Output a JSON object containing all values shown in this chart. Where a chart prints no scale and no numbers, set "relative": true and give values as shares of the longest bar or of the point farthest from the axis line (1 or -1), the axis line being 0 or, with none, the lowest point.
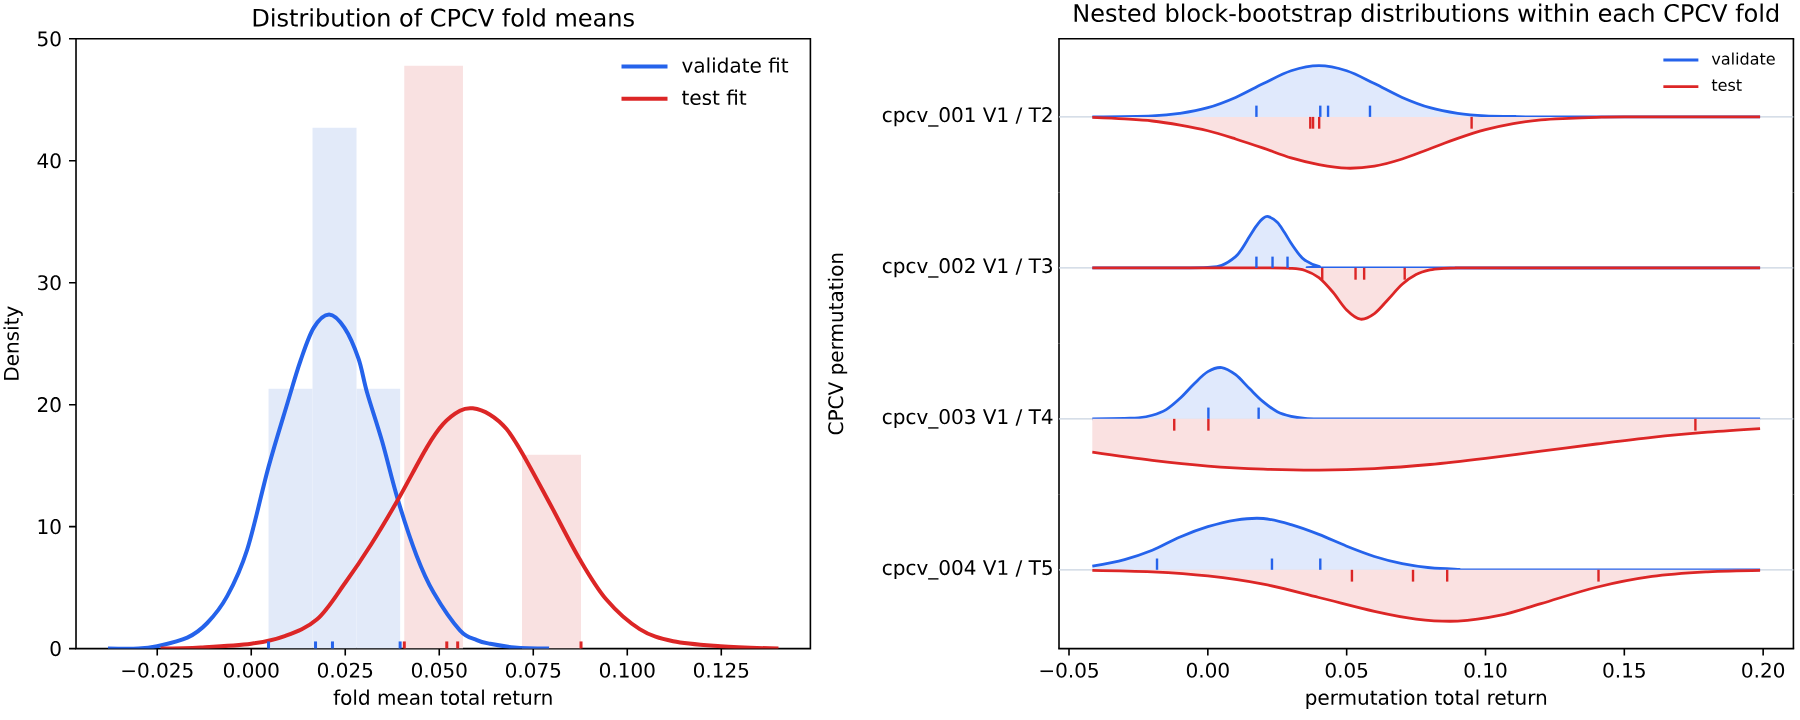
{
  "chart_data": [
    {
      "type": "histogram",
      "title": "Distribution of CPCV fold means",
      "xlabel": "fold mean total return",
      "ylabel": "Density",
      "legend": "top right",
      "xlim": [
        -0.0466,
        0.1487
      ],
      "xticks": [
        {
          "value": -0.025,
          "label": "−0.025"
        },
        {
          "value": 0,
          "label": "0.000"
        },
        0.025,
        {
          "value": 0.05,
          "label": "0.050"
        },
        0.075,
        {
          "value": 0.1,
          "label": "0.100"
        },
        0.125
      ],
      "ylim": [
        0,
        50
      ],
      "yticks": [
        0,
        10,
        20,
        30,
        40,
        50
      ],
      "series": [
        {
          "color": "#e2eaf9",
          "bins": [
            0.0046,
            0.0163,
            0.028,
            0.0396
          ],
          "values": [
            21.3,
            42.7,
            21.3
          ]
        },
        {
          "color": "#f9e1e1",
          "bins": [
            0.0407,
            0.0563,
            0.072,
            0.0877
          ],
          "values": [
            47.8,
            0,
            15.9
          ]
        },
        {
          "type": "line",
          "name": "validate fit",
          "color": "#2563eb",
          "x": [
            -0.0381,
            -0.03,
            -0.025,
            -0.017,
            -0.0117,
            -0.0064,
            -0.0011,
            0.0046,
            0.0096,
            0.0131,
            0.0166,
            0.0207,
            0.0248,
            0.0285,
            0.0308,
            0.0348,
            0.039,
            0.044,
            0.0485,
            0.0555,
            0.06,
            0.0635,
            0.07,
            0.0792
          ],
          "values": [
            0.0,
            0.0,
            0.2,
            0.9,
            2.1,
            4.3,
            8.1,
            14.9,
            20.1,
            23.6,
            26.3,
            27.4,
            26.3,
            23.8,
            21.0,
            17.0,
            12.2,
            7.6,
            4.6,
            1.5,
            0.7,
            0.4,
            0.1,
            0.0
          ]
        },
        {
          "type": "line",
          "name": "test fit",
          "color": "#dc2626",
          "x": [
            -0.0241,
            -0.0134,
            0.0,
            0.0087,
            0.0175,
            0.025,
            0.032,
            0.039,
            0.0467,
            0.051,
            0.0555,
            0.0589,
            0.0634,
            0.0679,
            0.0723,
            0.0794,
            0.0874,
            0.0945,
            0.1033,
            0.1122,
            0.1248,
            0.1402
          ],
          "values": [
            0.0,
            0.1,
            0.4,
            1.0,
            2.4,
            5.4,
            8.6,
            12.2,
            16.5,
            18.4,
            19.5,
            19.7,
            19.2,
            18.0,
            15.9,
            11.9,
            7.3,
            4.0,
            1.6,
            0.6,
            0.2,
            0.0
          ]
        },
        {
          "type": "scatter",
          "color": "#2563eb",
          "x": [
            0.0046,
            0.0171,
            0.0216,
            0.0396
          ],
          "values": [
            0.3,
            0.3,
            0.3,
            0.3
          ]
        },
        {
          "type": "scatter",
          "color": "#dc2626",
          "x": [
            0.0407,
            0.052,
            0.0549,
            0.0877
          ],
          "values": [
            0.3,
            0.3,
            0.3,
            0.3
          ]
        }
      ]
    },
    {
      "type": "area",
      "relative": true,
      "title": "Nested block-bootstrap distributions within each CPCV fold",
      "ylabel": "cpcv_001  V1 / T2",
      "annotations": [
        "CPCV permutation"
      ],
      "legend": "top right",
      "tick_labels": false,
      "xlim": [
        -0.0536,
        0.2109
      ],
      "series": [
        {
          "name": "validate",
          "color": "#2563eb",
          "x": [
            -0.0416,
            -0.02,
            -0.01,
            0,
            0.01,
            0.02,
            0.03,
            0.04,
            0.05,
            0.06,
            0.07,
            0.08,
            0.09,
            0.1,
            0.11,
            0.12,
            0.1989
          ],
          "values": [
            0,
            0.02,
            0.07,
            0.18,
            0.38,
            0.65,
            0.9,
            1.0,
            0.9,
            0.65,
            0.38,
            0.18,
            0.07,
            0.02,
            0.01,
            0,
            0
          ]
        },
        {
          "name": "test",
          "color": "#dc2626",
          "x": [
            -0.0416,
            -0.03,
            -0.02,
            -0.01,
            0,
            0.01,
            0.02,
            0.03,
            0.04,
            0.05,
            0.06,
            0.07,
            0.08,
            0.09,
            0.1,
            0.11,
            0.12,
            0.13,
            0.14,
            0.15,
            0.1989
          ],
          "values": [
            -0.01,
            -0.04,
            -0.08,
            -0.16,
            -0.27,
            -0.43,
            -0.61,
            -0.8,
            -0.93,
            -1.0,
            -0.96,
            -0.82,
            -0.62,
            -0.42,
            -0.25,
            -0.13,
            -0.06,
            -0.03,
            -0.01,
            0,
            0
          ]
        },
        {
          "type": "bar",
          "color": "#2563eb",
          "x": [
            0.0175,
            0.0405,
            0.0433,
            0.0584
          ],
          "values": [
            0.22,
            0.22,
            0.22,
            0.22
          ]
        },
        {
          "type": "bar",
          "color": "#dc2626",
          "x": [
            0.0369,
            0.0379,
            0.0401,
            0.095
          ],
          "values": [
            -0.23,
            -0.23,
            -0.23,
            -0.23
          ]
        }
      ]
    },
    {
      "type": "area",
      "relative": true,
      "ylabel": "cpcv_002  V1 / T3",
      "tick_labels": false,
      "xlim": [
        -0.0536,
        0.2109
      ],
      "series": [
        {
          "color": "#2563eb",
          "x": [
            -0.0416,
            -0.01,
            0,
            0.005,
            0.01,
            0.0125,
            0.015,
            0.0175,
            0.02,
            0.0218,
            0.025,
            0.0275,
            0.03,
            0.0325,
            0.035,
            0.04,
            0.05,
            0.1989
          ],
          "values": [
            0,
            0,
            0.01,
            0.05,
            0.22,
            0.39,
            0.61,
            0.82,
            0.97,
            1.0,
            0.89,
            0.7,
            0.48,
            0.29,
            0.15,
            0.03,
            0,
            0
          ]
        },
        {
          "color": "#dc2626",
          "x": [
            -0.0416,
            0.02,
            0.03,
            0.035,
            0.04,
            0.045,
            0.05,
            0.055,
            0.06,
            0.065,
            0.07,
            0.075,
            0.08,
            0.085,
            0.09,
            0.1,
            0.1989
          ],
          "values": [
            0,
            0,
            -0.01,
            -0.05,
            -0.19,
            -0.47,
            -0.82,
            -1.0,
            -0.89,
            -0.61,
            -0.32,
            -0.13,
            -0.04,
            -0.01,
            0,
            0,
            0
          ]
        },
        {
          "type": "bar",
          "color": "#2563eb",
          "x": [
            0.0175,
            0.0233,
            0.0287
          ],
          "values": [
            0.22,
            0.22,
            0.22
          ]
        },
        {
          "type": "bar",
          "color": "#dc2626",
          "x": [
            0.0412,
            0.0532,
            0.0563,
            0.0709
          ],
          "values": [
            -0.23,
            -0.23,
            -0.23,
            -0.23
          ]
        }
      ]
    },
    {
      "type": "area",
      "relative": true,
      "ylabel": "cpcv_003  V1 / T4",
      "tick_labels": false,
      "xlim": [
        -0.0536,
        0.2109
      ],
      "series": [
        {
          "color": "#2563eb",
          "x": [
            -0.0416,
            -0.03,
            -0.025,
            -0.02,
            -0.015,
            -0.01,
            -0.005,
            0,
            0.005,
            0.01,
            0.015,
            0.02,
            0.025,
            0.03,
            0.035,
            0.04,
            0.05,
            0.1989
          ],
          "values": [
            0,
            0.01,
            0.02,
            0.07,
            0.18,
            0.4,
            0.68,
            0.92,
            1.0,
            0.86,
            0.59,
            0.33,
            0.14,
            0.05,
            0.01,
            0,
            0,
            0
          ]
        },
        {
          "color": "#dc2626",
          "x": [
            -0.0416,
            -0.02,
            0,
            0.02,
            0.04,
            0.06,
            0.08,
            0.1,
            0.12,
            0.14,
            0.16,
            0.18,
            0.1989
          ],
          "values": [
            -0.65,
            -0.81,
            -0.92,
            -0.98,
            -1.0,
            -0.97,
            -0.89,
            -0.77,
            -0.63,
            -0.49,
            -0.36,
            -0.26,
            -0.19
          ]
        },
        {
          "type": "bar",
          "color": "#2563eb",
          "x": [
            0.0002,
            0.0183
          ],
          "values": [
            0.22,
            0.22
          ]
        },
        {
          "type": "bar",
          "color": "#dc2626",
          "x": [
            -0.0121,
            0.0002,
            0.1756
          ],
          "values": [
            -0.23,
            -0.23,
            -0.23
          ]
        }
      ]
    },
    {
      "type": "area",
      "relative": true,
      "ylabel": "cpcv_004  V1 / T5",
      "xlabel": "permutation total return",
      "xlim": [
        -0.0536,
        0.2109
      ],
      "xticks": [
        {
          "value": -0.05,
          "label": "−0.05"
        },
        {
          "value": 0,
          "label": "0.00"
        },
        0.05,
        {
          "value": 0.1,
          "label": "0.10"
        },
        0.15,
        {
          "value": 0.2,
          "label": "0.20"
        }
      ],
      "series": [
        {
          "color": "#2563eb",
          "x": [
            -0.0416,
            -0.03,
            -0.02,
            -0.01,
            0,
            0.01,
            0.02,
            0.03,
            0.04,
            0.05,
            0.06,
            0.07,
            0.08,
            0.09,
            0.1,
            0.1989
          ],
          "values": [
            0.07,
            0.2,
            0.38,
            0.64,
            0.84,
            0.97,
            1.0,
            0.88,
            0.69,
            0.46,
            0.26,
            0.12,
            0.04,
            0.01,
            0,
            0
          ]
        },
        {
          "color": "#dc2626",
          "x": [
            -0.0416,
            -0.02,
            0,
            0.02,
            0.04,
            0.06,
            0.075,
            0.09,
            0.105,
            0.12,
            0.14,
            0.16,
            0.18,
            0.1989
          ],
          "values": [
            -0.01,
            -0.04,
            -0.12,
            -0.28,
            -0.54,
            -0.81,
            -0.96,
            -1.0,
            -0.89,
            -0.66,
            -0.34,
            -0.13,
            -0.04,
            -0.01
          ]
        },
        {
          "type": "bar",
          "color": "#2563eb",
          "x": [
            -0.0183,
            0.0231,
            0.0405
          ],
          "values": [
            0.22,
            0.22,
            0.22
          ]
        },
        {
          "type": "bar",
          "color": "#dc2626",
          "x": [
            0.0519,
            0.0739,
            0.0862,
            0.1407
          ],
          "values": [
            -0.23,
            -0.23,
            -0.23,
            -0.23
          ]
        }
      ]
    }
  ]
}
